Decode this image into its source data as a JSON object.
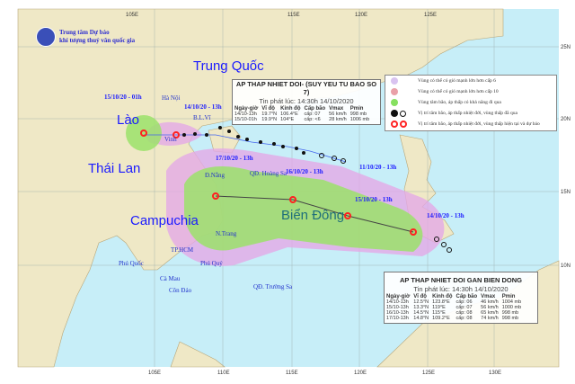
{
  "logo": {
    "line1": "Trung tâm Dự báo",
    "line2": "khí tượng thuỷ văn quốc gia"
  },
  "axes": {
    "lon_labels": [
      "105E",
      "110E",
      "115E",
      "120E",
      "125E",
      "130E"
    ],
    "lat_labels": [
      "25N",
      "20N",
      "15N",
      "10N"
    ]
  },
  "countries": {
    "china": "Trung Quốc",
    "laos": "Lào",
    "thailand": "Thái Lan",
    "cambodia": "Campuchia",
    "sea": "Biển Đông"
  },
  "places": [
    "Hà Nội",
    "B.L.Vĩ",
    "Vinh",
    "Đ.Nẵng",
    "QĐ. Hoàng Sa",
    "N.Trang",
    "TP.HCM",
    "Phú Quốc",
    "Phú Quý",
    "Cà Mau",
    "Côn Đảo",
    "QĐ. Trường Sa"
  ],
  "track_labels": {
    "storm_now": "14/10/20 - 13h",
    "storm_next": "15/10/20 - 01h",
    "past": "11/10/20 - 13h",
    "d17": "17/10/20 - 13h",
    "d16": "16/10/20 - 13h",
    "d15": "15/10/20 - 13h",
    "d14": "14/10/20 - 13h"
  },
  "colors": {
    "land": "#efe8c6",
    "sea": "#c7eef8",
    "cone_purple": "#e3a9e6",
    "cone_green": "#9be26a",
    "current": "#ff2020",
    "past": "#111111"
  },
  "legend": [
    {
      "icon": "purple-dot",
      "text": "Vùng có thể có gió mạnh lớn hơn cấp 6"
    },
    {
      "icon": "pink-dot",
      "text": "Vùng có thể có gió mạnh lớn hơn cấp 10"
    },
    {
      "icon": "green-dot",
      "text": "Vùng tâm bão, áp thấp có khả năng đi qua"
    },
    {
      "icon": "black-storm-symbols",
      "text": "Vị trí tâm bão, áp thấp nhiệt đới, vùng thấp đã qua"
    },
    {
      "icon": "red-storm-symbols",
      "text": "Vị trí tâm bão, áp thấp nhiệt đới, vùng thấp hiện tại và dự báo"
    }
  ],
  "box1": {
    "title": "AP THAP NHIET DOI- (SUY YEU TU BAO SO 7)",
    "issued": "Tin phát lúc: 14:30h 14/10/2020",
    "headers": [
      "Ngày-giờ",
      "Vĩ độ",
      "Kinh độ",
      "Cấp bão",
      "Vmax",
      "Pmin"
    ],
    "rows": [
      [
        "14/10-13h",
        "19.7°N",
        "106.4°E",
        "cấp: 07",
        "56 km/h",
        "998 mb"
      ],
      [
        "15/10-01h",
        "19.9°N",
        "104°E",
        "cấp: <6",
        "28 km/h",
        "1006 mb"
      ]
    ]
  },
  "box2": {
    "title": "AP THAP NHIET DOI GAN BIEN DONG",
    "issued": "Tin phát lúc: 14:30h 14/10/2020",
    "headers": [
      "Ngày-giờ",
      "Vĩ độ",
      "Kinh độ",
      "Cấp bão",
      "Vmax",
      "Pmin"
    ],
    "rows": [
      [
        "14/10-13h",
        "12.5°N",
        "123.8°E",
        "cấp: 06",
        "46 km/h",
        "1004 mb"
      ],
      [
        "15/10-13h",
        "13.3°N",
        "119°E",
        "cấp: 07",
        "56 km/h",
        "1000 mb"
      ],
      [
        "16/10-13h",
        "14.5°N",
        "115°E",
        "cấp: 08",
        "65 km/h",
        "998 mb"
      ],
      [
        "17/10-13h",
        "14.8°N",
        "109.2°E",
        "cấp: 08",
        "74 km/h",
        "998 mb"
      ]
    ]
  }
}
